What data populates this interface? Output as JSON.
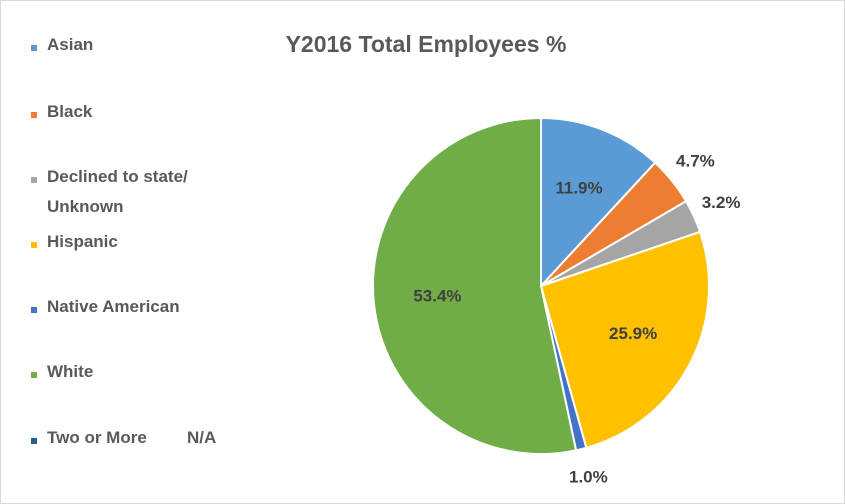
{
  "chart_data": {
    "type": "pie",
    "title": "Y2016 Total Employees %",
    "categories": [
      "Asian",
      "Black",
      "Declined to state/ Unknown",
      "Hispanic",
      "Native American",
      "White",
      "Two or More"
    ],
    "values": [
      11.9,
      4.7,
      3.2,
      25.9,
      1.0,
      53.4,
      null
    ],
    "value_labels": [
      "11.9%",
      "4.7%",
      "3.2%",
      "25.9%",
      "1.0%",
      "53.4%",
      "N/A"
    ],
    "colors": [
      "#5b9bd5",
      "#ed7d31",
      "#a5a5a5",
      "#ffc000",
      "#4472c4",
      "#70ad47",
      "#255e91"
    ],
    "legend": "left"
  }
}
